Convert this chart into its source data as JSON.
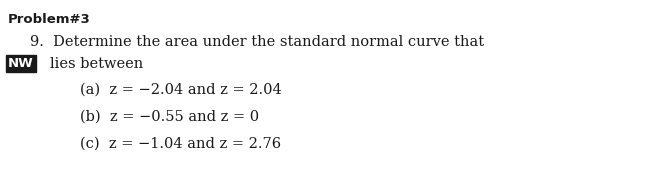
{
  "title": "Problem#3",
  "line1": "9.  Determine the area under the standard normal curve that",
  "nw_label": "NW",
  "lies_between": "lies between",
  "item_a_text": "(a)  z = −2.04 and z = 2.04",
  "item_b_text": "(b)  z = −0.55 and z = 0",
  "item_c_text": "(c)  z = −1.04 and z = 2.76",
  "bg_color": "#ffffff",
  "text_color": "#1a1a1a",
  "nw_bg": "#1a1a1a",
  "nw_fg": "#ffffff",
  "title_fontsize": 9.5,
  "body_fontsize": 10.5,
  "small_fontsize": 9.5
}
